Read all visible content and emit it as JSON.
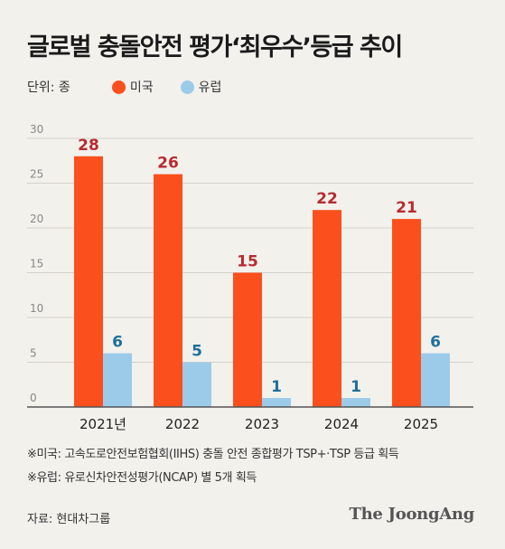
{
  "title": "글로벌 충돌안전 평가‘최우수’등급 추이",
  "unit_label": "단위: 종",
  "legend": [
    {
      "label": "미국",
      "color": "#fb4f1d"
    },
    {
      "label": "유럽",
      "color": "#9ccbea"
    }
  ],
  "notes": [
    "※미국: 고속도로안전보험협회(IIHS) 충돌 안전 종합평가 TSP+·TSP 등급 획득",
    "※유럽: 유로신차안전성평가(NCAP) 별 5개 획득"
  ],
  "source": "자료: 현대차그룹",
  "brand": "The JoongAng",
  "chart_data": {
    "type": "bar",
    "categories": [
      "2021년",
      "2022",
      "2023",
      "2024",
      "2025"
    ],
    "series": [
      {
        "name": "미국",
        "values": [
          28,
          26,
          15,
          22,
          21
        ],
        "color": "#fb4f1d",
        "label_color": "#b82a2f"
      },
      {
        "name": "유럽",
        "values": [
          6,
          5,
          1,
          1,
          6
        ],
        "color": "#9ccbea",
        "label_color": "#1f6f9c"
      }
    ],
    "ylim": [
      0,
      30
    ],
    "yticks": [
      0,
      5,
      10,
      15,
      20,
      25,
      30
    ],
    "grid": true
  }
}
